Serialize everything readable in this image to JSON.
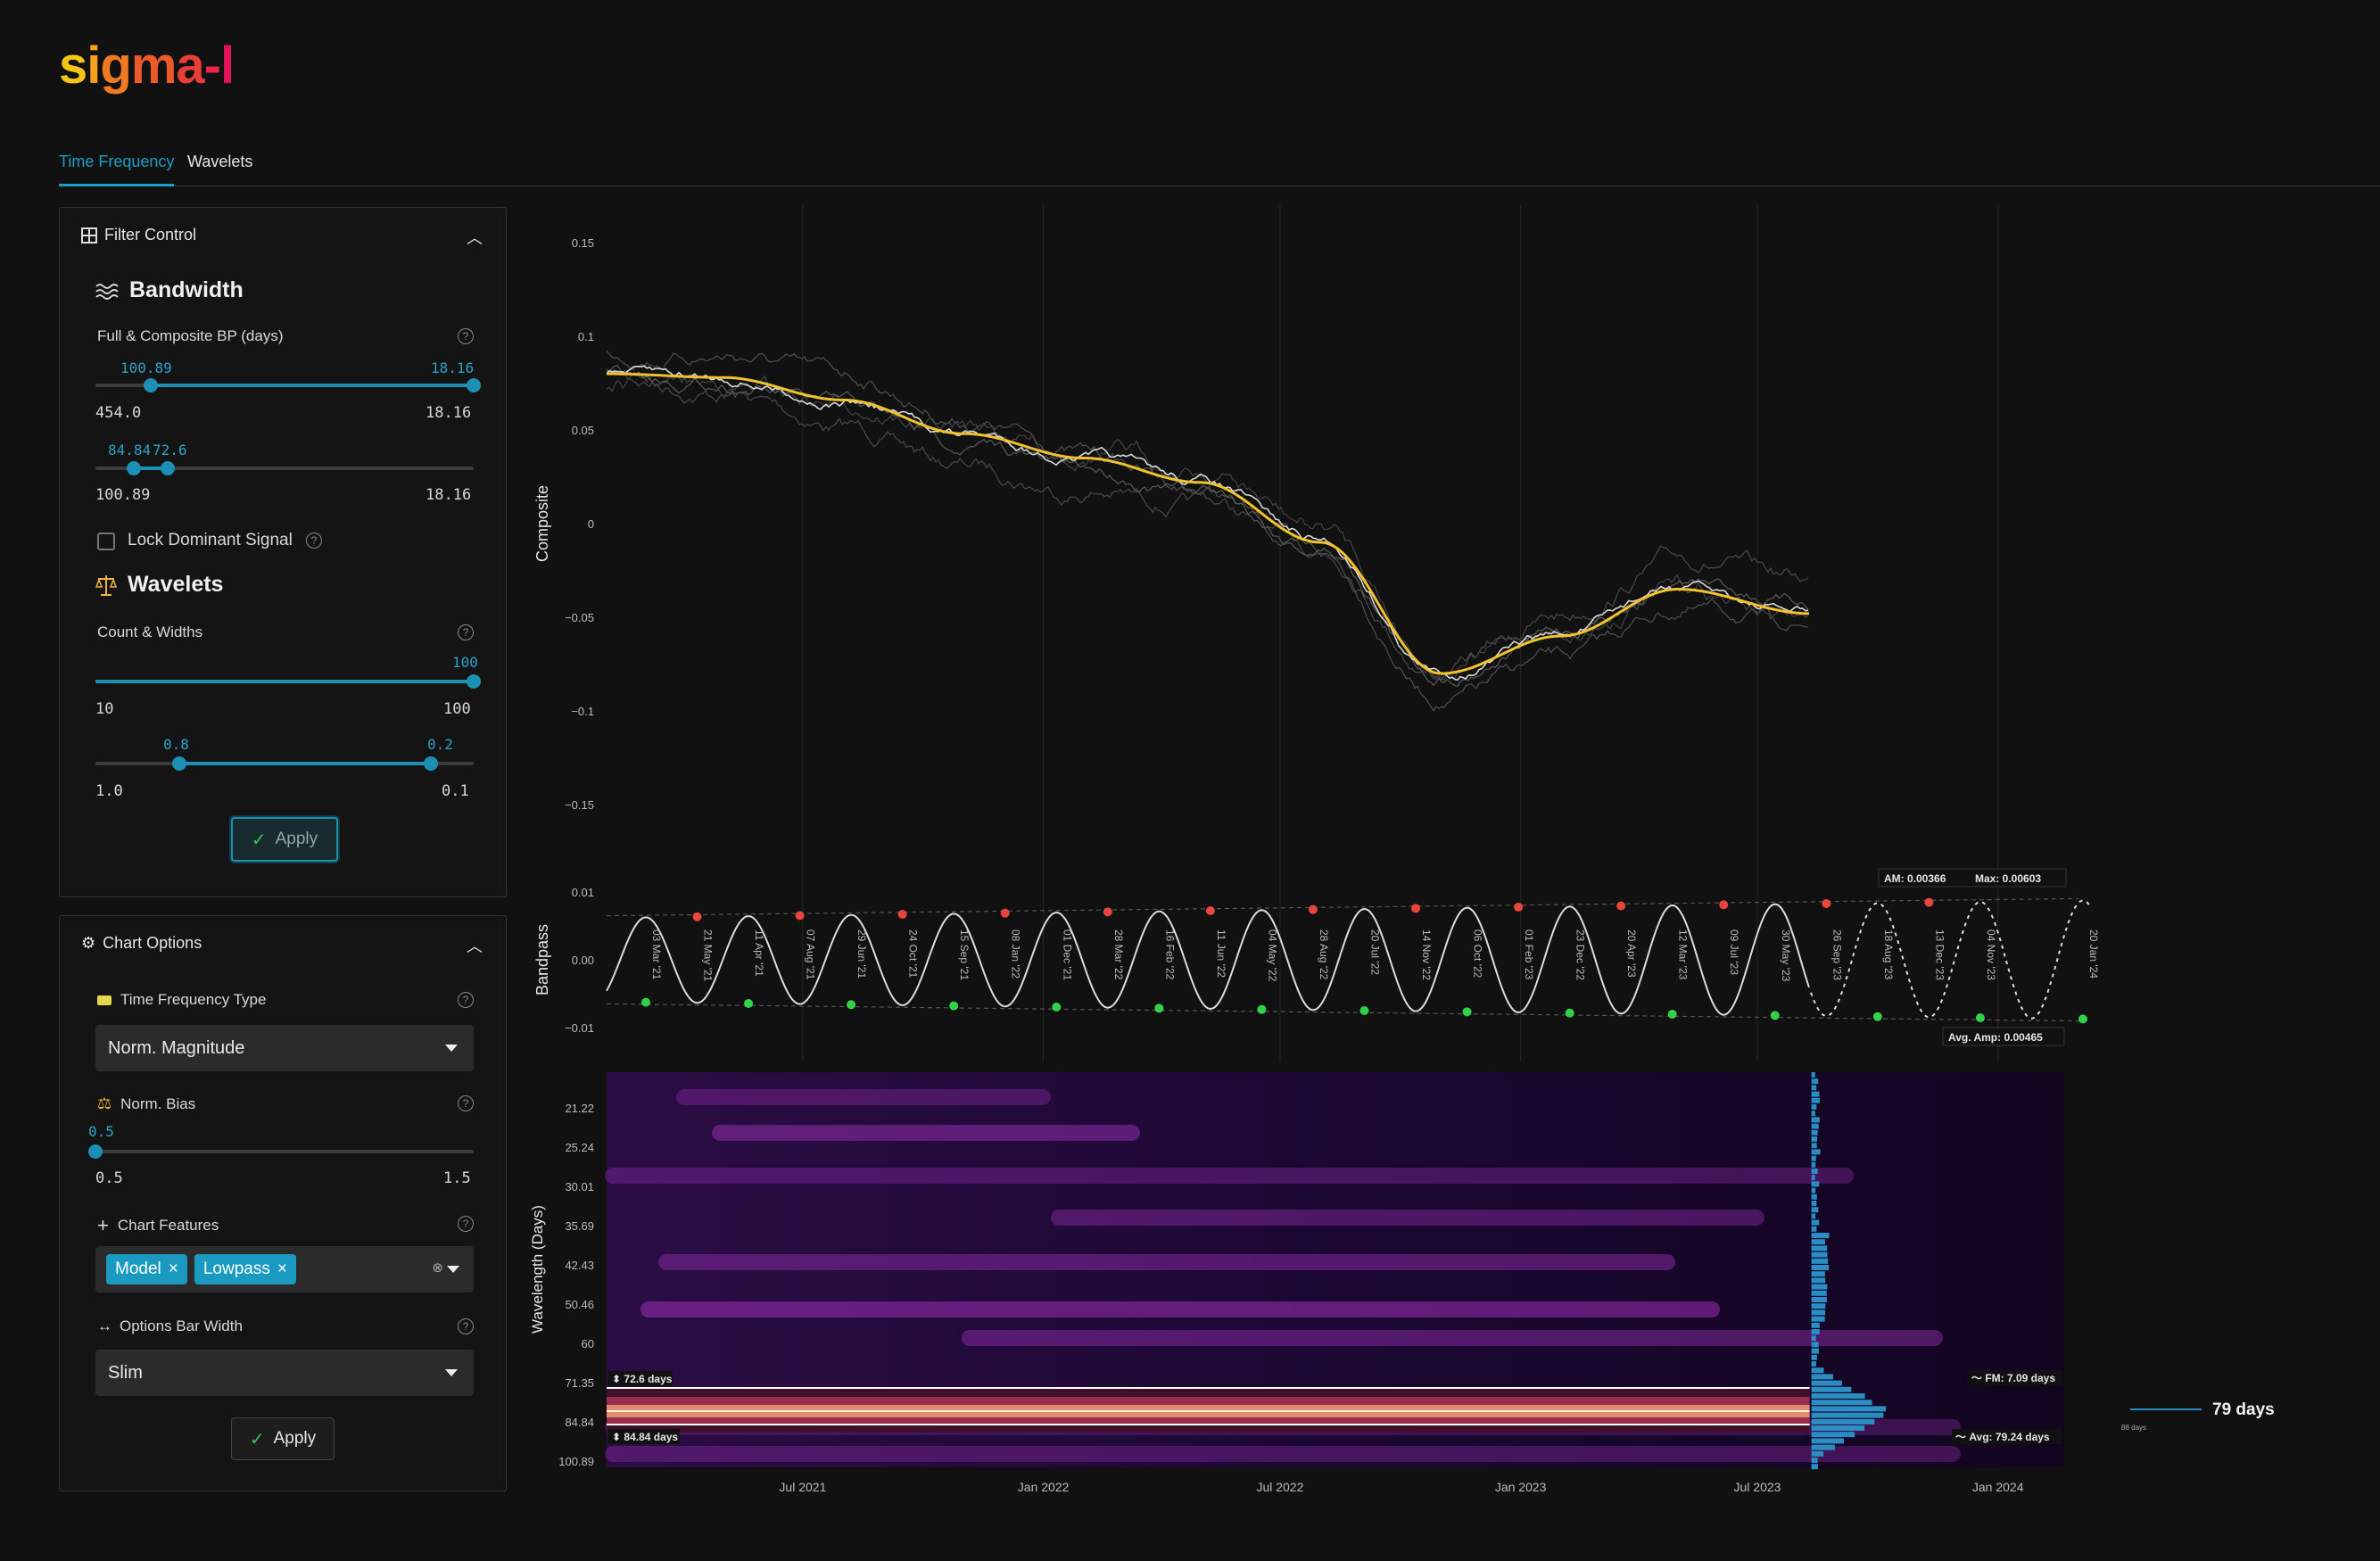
{
  "logo": {
    "parts": [
      "s",
      "i",
      "g",
      "m",
      "a",
      "-",
      "l"
    ]
  },
  "tabs": [
    {
      "label": "Time Frequency"
    },
    {
      "label": "Wavelets"
    }
  ],
  "filter_control": {
    "title": "Filter Control",
    "bandwidth": {
      "title": "Bandwidth",
      "label": "Full & Composite BP (days)",
      "slider1": {
        "low": "100.89",
        "high": "18.16",
        "min": "454.0",
        "max": "18.16"
      },
      "slider2": {
        "low": "84.84",
        "high": "72.6",
        "min": "100.89",
        "max": "18.16"
      }
    },
    "lock_label": "Lock Dominant Signal",
    "wavelets": {
      "title": "Wavelets",
      "label": "Count & Widths",
      "slider1": {
        "value": "100",
        "min": "10",
        "max": "100"
      },
      "slider2": {
        "low": "0.8",
        "high": "0.2",
        "min": "1.0",
        "max": "0.1"
      }
    },
    "apply_label": "Apply"
  },
  "chart_options": {
    "title": "Chart Options",
    "tf_type_label": "Time Frequency Type",
    "tf_type_value": "Norm. Magnitude",
    "norm_bias_label": "Norm. Bias",
    "norm_bias": {
      "value": "0.5",
      "min": "0.5",
      "max": "1.5"
    },
    "features_label": "Chart Features",
    "features": [
      "Model",
      "Lowpass"
    ],
    "options_bar_label": "Options Bar Width",
    "options_bar_value": "Slim",
    "apply_label": "Apply"
  },
  "chart_data": [
    {
      "type": "line",
      "ylabel": "Composite",
      "yticks": [
        "0.15",
        "0.1",
        "0.05",
        "0",
        "−0.05",
        "−0.1",
        "−0.15"
      ],
      "ylim": [
        -0.15,
        0.15
      ],
      "series": [
        {
          "color": "#f2c12e",
          "x": [
            "2021-02-01",
            "2021-05-01",
            "2021-08-01",
            "2021-11-01",
            "2022-02-01",
            "2022-05-01",
            "2022-08-01",
            "2022-11-01",
            "2023-02-01",
            "2023-05-01",
            "2023-08-10"
          ],
          "values": [
            0.08,
            0.078,
            0.066,
            0.048,
            0.035,
            0.022,
            -0.01,
            -0.08,
            -0.06,
            -0.035,
            -0.048
          ]
        }
      ]
    },
    {
      "type": "line",
      "ylabel": "Bandpass",
      "yticks": [
        "0.01",
        "0.00",
        "−0.01"
      ],
      "ylim": [
        -0.012,
        0.012
      ],
      "annotations": {
        "am": "AM: 0.00366",
        "max": "Max: 0.00603",
        "avg_amp": "Avg. Amp: 0.00465"
      },
      "peak_labels": [
        "21 May '21",
        "07 Aug '21",
        "24 Oct '21",
        "08 Jan '22",
        "28 Mar '22",
        "11 Jun '22",
        "28 Aug '22",
        "14 Nov '22",
        "01 Feb '23",
        "20 Apr '23",
        "09 Jul '23",
        "26 Sep '23",
        "13 Dec '23"
      ],
      "trough_labels": [
        "03 Mar '21",
        "11 Apr '21",
        "29 Jun '21",
        "15 Sep '21",
        "01 Dec '21",
        "16 Feb '22",
        "04 May '22",
        "20 Jul '22",
        "06 Oct '22",
        "23 Dec '22",
        "12 Mar '23",
        "30 May '23",
        "18 Aug '23",
        "04 Nov '23",
        "20 Jan '24"
      ]
    },
    {
      "type": "heatmap",
      "ylabel": "Wavelength (Days)",
      "yticks": [
        "21.22",
        "25.24",
        "30.01",
        "35.69",
        "42.43",
        "50.46",
        "60",
        "71.35",
        "84.84",
        "100.89"
      ],
      "xticks": [
        "Jul 2021",
        "Jan 2022",
        "Jul 2022",
        "Jan 2023",
        "Jul 2023",
        "Jan 2024"
      ],
      "band_top": "72.6 days",
      "band_bottom": "84.84 days",
      "fm": "FM: 7.09 days",
      "avg": "Avg: 79.24 days",
      "peak": "79 days",
      "peak_small": "88 days"
    }
  ]
}
